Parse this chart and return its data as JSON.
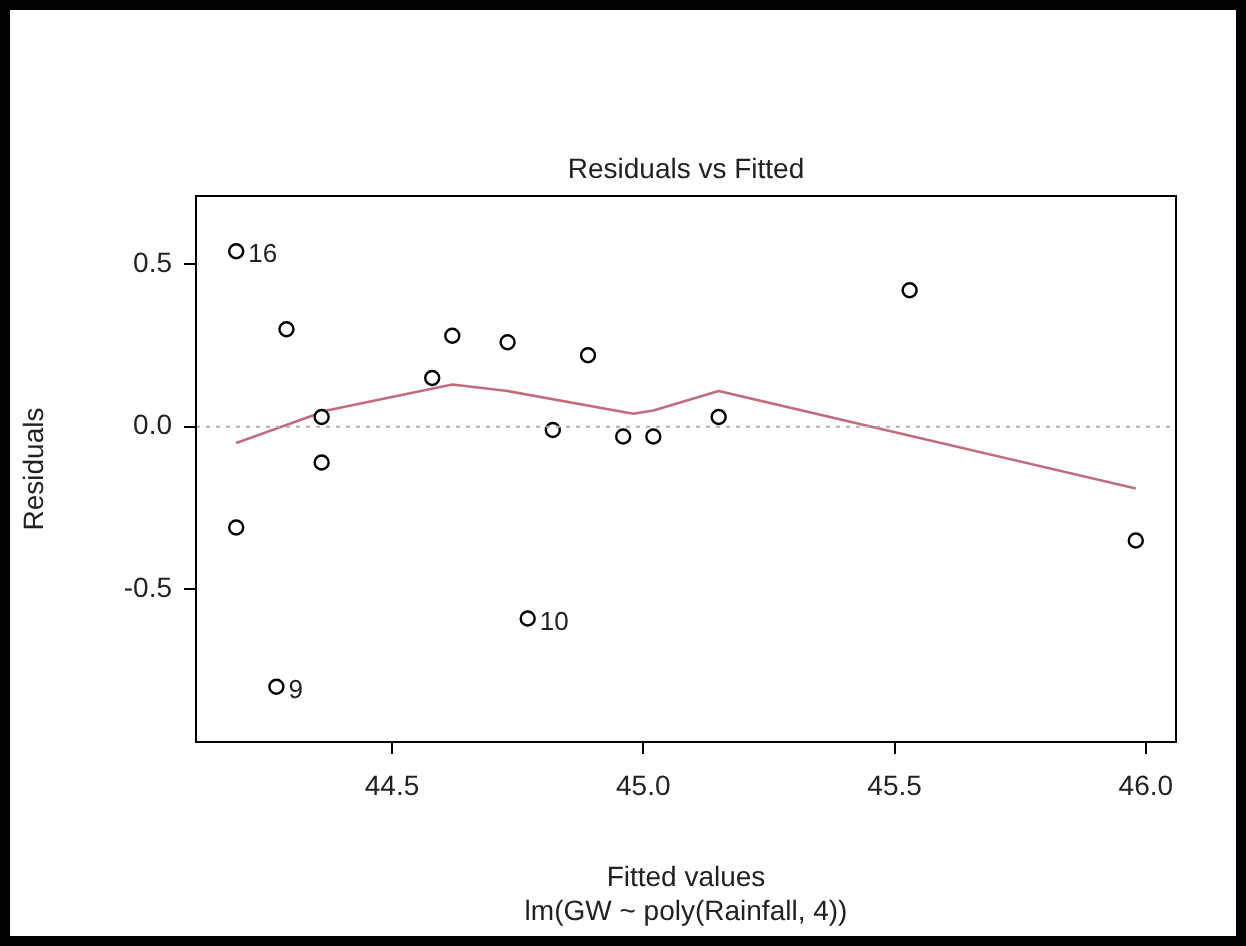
{
  "chart_data": {
    "type": "scatter",
    "title": "Residuals vs Fitted",
    "xlabel": "Fitted values",
    "ylabel": "Residuals",
    "annotations": [
      {
        "text": "16",
        "x": 44.19,
        "y": 0.54
      },
      {
        "text": "9",
        "x": 44.27,
        "y": -0.8
      },
      {
        "text": "10",
        "x": 44.77,
        "y": -0.59
      },
      "lm(GW ~ poly(Rainfall, 4))"
    ],
    "xlim": [
      44.11,
      46.06
    ],
    "xticks": [
      44.5,
      {
        "value": 45,
        "label": "45.0"
      },
      45.5,
      {
        "value": 46,
        "label": "46.0"
      }
    ],
    "ylim": [
      -0.97,
      0.71
    ],
    "yticks": [
      -0.5,
      {
        "value": 0,
        "label": "0.0"
      },
      0.5
    ],
    "grid": false,
    "legend": false,
    "marker": "circle",
    "series": [
      {
        "type": "scatter",
        "color": "#000000",
        "x": [
          44.19,
          44.29,
          44.36,
          44.36,
          44.19,
          44.27,
          44.58,
          44.62,
          44.73,
          44.89,
          44.82,
          44.96,
          44.77,
          45.02,
          45.15,
          45.53,
          45.98
        ],
        "values": [
          0.54,
          0.3,
          0.03,
          -0.11,
          -0.31,
          -0.8,
          0.15,
          0.28,
          0.26,
          0.22,
          -0.01,
          -0.03,
          -0.59,
          -0.03,
          0.03,
          0.42,
          -0.35
        ]
      },
      {
        "type": "line",
        "color": "#c26b7e",
        "marker": "none",
        "x": [
          44.19,
          44.28,
          44.37,
          44.62,
          44.73,
          44.98,
          45.02,
          45.15,
          45.98
        ],
        "values": [
          -0.05,
          0.0,
          0.05,
          0.13,
          0.11,
          0.04,
          0.05,
          0.11,
          -0.19
        ]
      }
    ],
    "ref_lines": [
      {
        "axis": "y",
        "value": 0,
        "color": "#b0b0b0",
        "line_style": "dotted"
      }
    ]
  }
}
